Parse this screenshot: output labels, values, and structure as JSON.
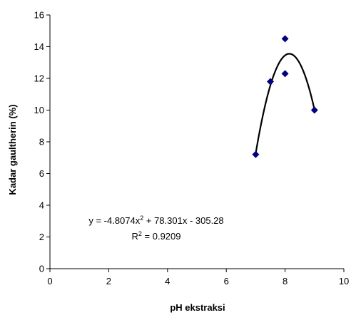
{
  "chart_data": {
    "type": "scatter",
    "xlabel": "pH ekstraksi",
    "ylabel": "Kadar gaultherin (%)",
    "xlim": [
      0,
      10
    ],
    "ylim": [
      0,
      16
    ],
    "x_ticks": [
      0,
      2,
      4,
      6,
      8,
      10
    ],
    "y_ticks": [
      0,
      2,
      4,
      6,
      8,
      10,
      12,
      14,
      16
    ],
    "grid": false,
    "marker_color": "#000080",
    "trendline_color": "#000000",
    "points": [
      {
        "x": 7.0,
        "y": 7.2
      },
      {
        "x": 7.5,
        "y": 11.8
      },
      {
        "x": 8.0,
        "y": 14.5
      },
      {
        "x": 8.0,
        "y": 12.3
      },
      {
        "x": 9.0,
        "y": 10.0
      }
    ],
    "trendline": {
      "type": "polynomial",
      "coefficients": [
        -4.8074,
        78.301,
        -305.28
      ],
      "x_range": [
        7,
        9
      ],
      "equation_prefix": "y = -4.8074x",
      "equation_suffix": " + 78.301x - 305.28",
      "r2_prefix": "R",
      "r2_suffix": " = 0.9209",
      "superscript": "2"
    }
  }
}
